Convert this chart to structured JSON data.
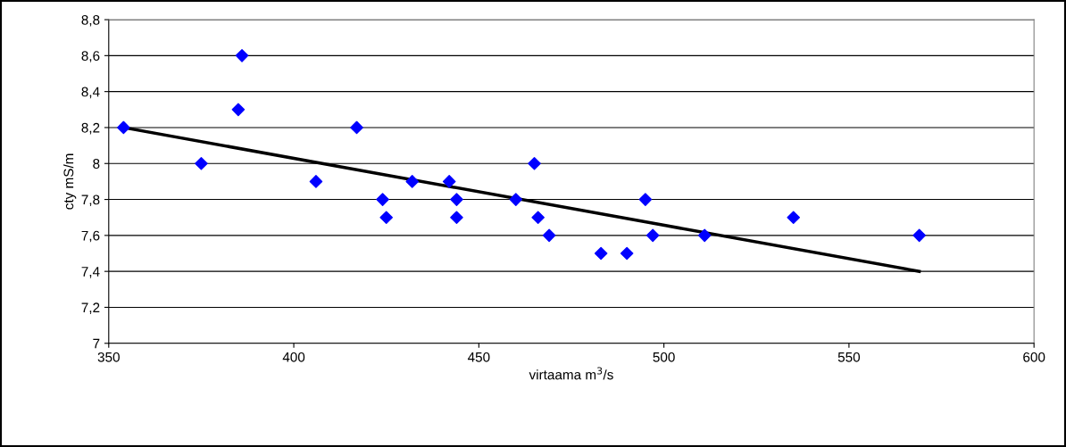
{
  "chart_data": {
    "type": "scatter",
    "xlabel": "virtaama m$^{3}$/s",
    "ylabel": "cty mS/m",
    "series": [
      {
        "color": "#0000ff",
        "marker": "diamond",
        "x": [
          354,
          375,
          385,
          386,
          406,
          417,
          424,
          425,
          432,
          442,
          444,
          444,
          460,
          465,
          466,
          469,
          483,
          490,
          495,
          497,
          511,
          535,
          569
        ],
        "values": [
          8.2,
          8.0,
          8.3,
          8.6,
          7.9,
          8.2,
          7.8,
          7.7,
          7.9,
          7.9,
          7.8,
          7.7,
          7.8,
          8.0,
          7.7,
          7.6,
          7.5,
          7.5,
          7.8,
          7.6,
          7.6,
          7.7,
          7.6
        ]
      },
      {
        "type": "line",
        "color": "#000000",
        "marker": "none",
        "x": [
          354,
          569
        ],
        "values": [
          8.2,
          7.4
        ]
      }
    ],
    "xlim": [
      350,
      600
    ],
    "xticks": [
      350,
      400,
      450,
      500,
      550,
      600
    ],
    "ylim": [
      7,
      8.8
    ],
    "yticks": [
      7,
      {
        "value": 7.2,
        "label": "7,2"
      },
      {
        "value": 7.4,
        "label": "7,4"
      },
      {
        "value": 7.6,
        "label": "7,6"
      },
      {
        "value": 7.8,
        "label": "7,8"
      },
      8,
      {
        "value": 8.2,
        "label": "8,2"
      },
      {
        "value": 8.4,
        "label": "8,4"
      },
      {
        "value": 8.6,
        "label": "8,6"
      },
      {
        "value": 8.8,
        "label": "8,8"
      }
    ],
    "grid": "y"
  }
}
